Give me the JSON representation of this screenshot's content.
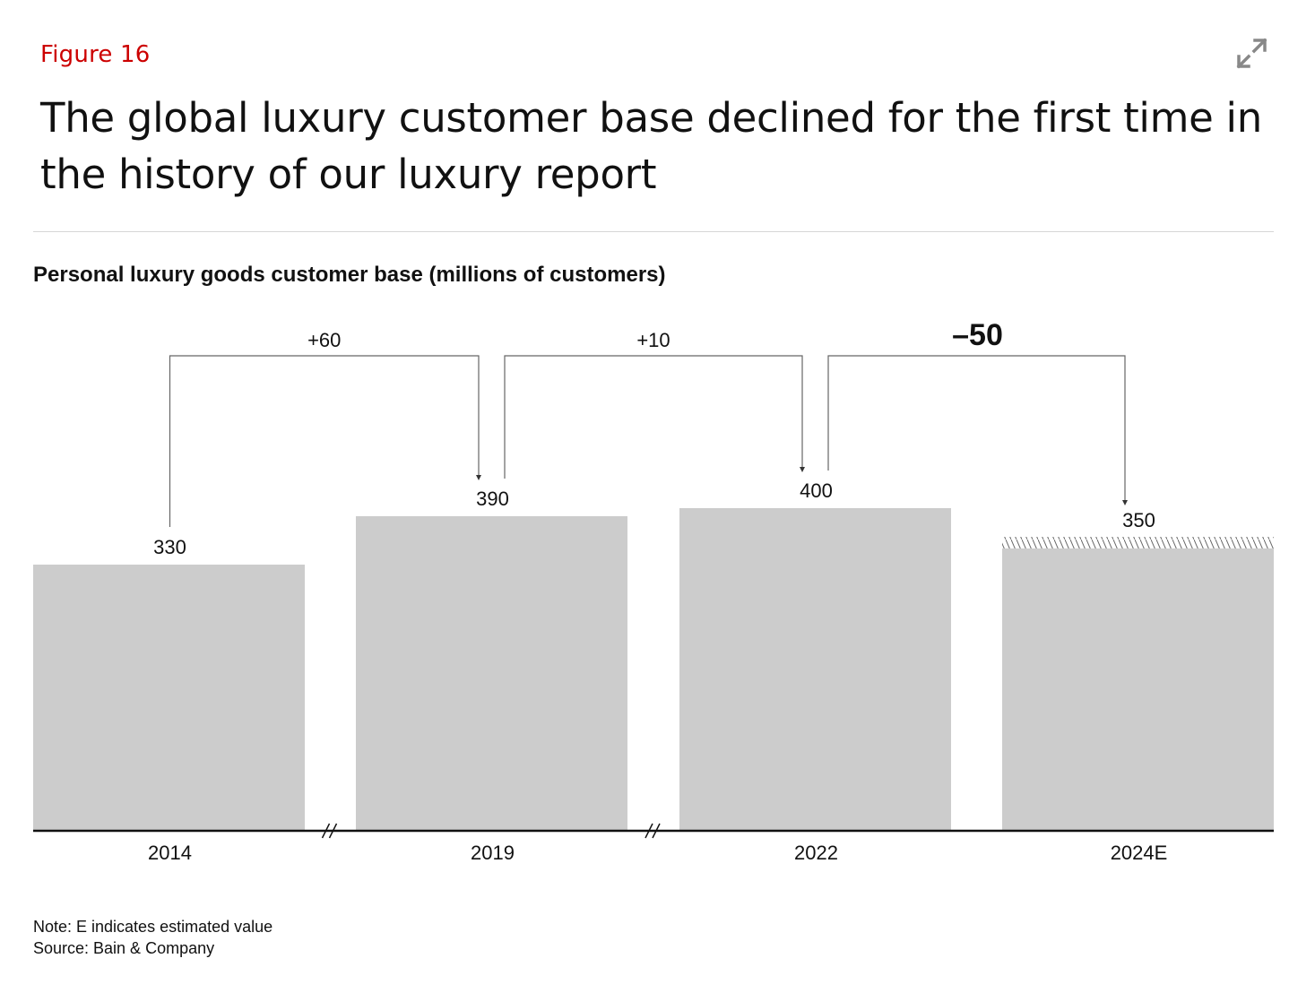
{
  "header": {
    "figure_label": "Figure 16",
    "title": "The global luxury customer base declined for the first time in the history of our luxury report",
    "expand_icon": "expand-icon"
  },
  "colors": {
    "accent": "#cc0000",
    "bar": "#cccccc",
    "text": "#111111"
  },
  "chart_data": {
    "type": "bar",
    "title": "Personal luxury goods customer base (millions of customers)",
    "xlabel": "",
    "ylabel": "",
    "categories": [
      "2014",
      "2019",
      "2022",
      "2024E"
    ],
    "values": [
      330,
      390,
      400,
      350
    ],
    "value_labels": [
      "330",
      "390",
      "400",
      "350"
    ],
    "ylim": [
      0,
      400
    ],
    "estimated": [
      false,
      false,
      false,
      true
    ],
    "axis_breaks_after": [
      0,
      1
    ],
    "changes": [
      {
        "from": 0,
        "to": 1,
        "label": "+60",
        "emphasis": false
      },
      {
        "from": 1,
        "to": 2,
        "label": "+10",
        "emphasis": false
      },
      {
        "from": 2,
        "to": 3,
        "label": "–50",
        "emphasis": true
      }
    ],
    "grid": false
  },
  "footer": {
    "note": "Note: E indicates estimated value",
    "source": "Source: Bain & Company"
  }
}
